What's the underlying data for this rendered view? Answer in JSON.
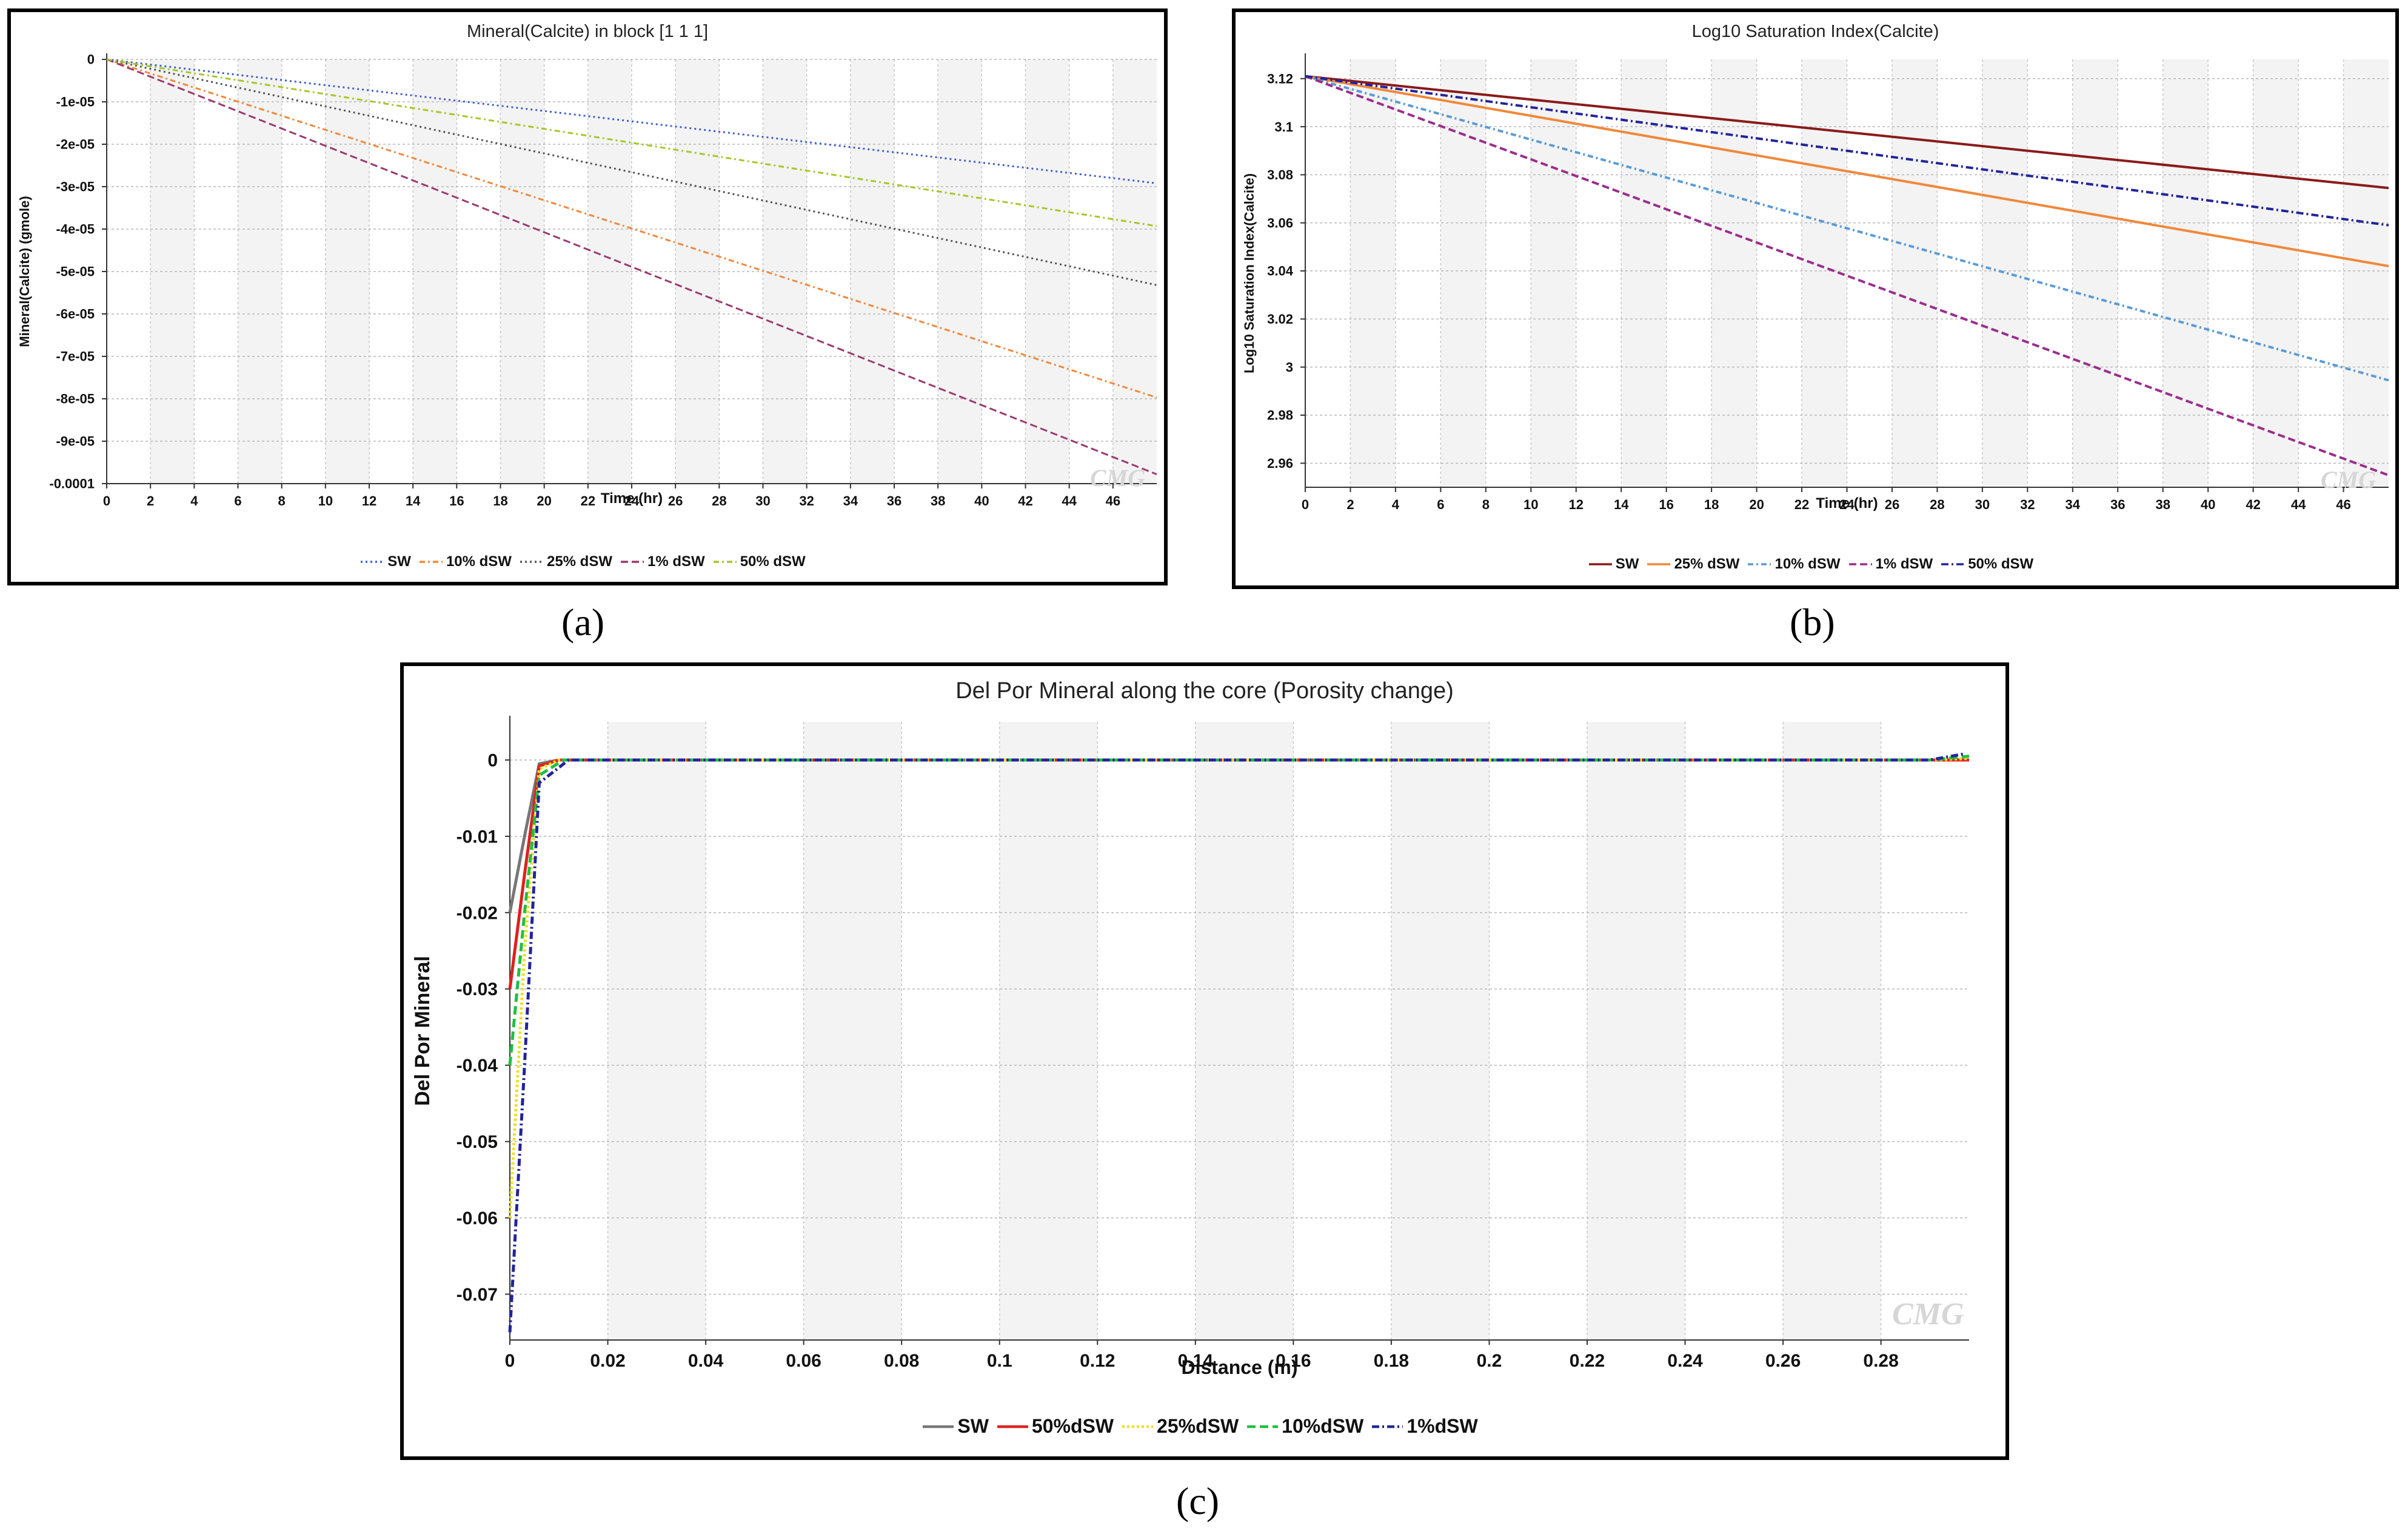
{
  "panels": [
    {
      "label": "(a)"
    },
    {
      "label": "(b)"
    },
    {
      "label": "(c)"
    }
  ],
  "watermark": "CMG",
  "chart_data": [
    {
      "type": "line",
      "title": "Mineral(Calcite) in block [1 1 1]",
      "xlabel": "Time (hr)",
      "ylabel": "Mineral(Calcite) (gmole)",
      "xlim": [
        0,
        48
      ],
      "ylim": [
        -0.0001,
        0
      ],
      "xticks": [
        0,
        2,
        4,
        6,
        8,
        10,
        12,
        14,
        16,
        18,
        20,
        22,
        24,
        26,
        28,
        30,
        32,
        34,
        36,
        38,
        40,
        42,
        44,
        46
      ],
      "xtick_labels": [
        "0",
        "2",
        "4",
        "6",
        "8",
        "10",
        "12",
        "14",
        "16",
        "18",
        "20",
        "22",
        "24",
        "26",
        "28",
        "30",
        "32",
        "34",
        "36",
        "38",
        "40",
        "42",
        "44",
        "46"
      ],
      "yticks": [
        0,
        -1e-05,
        -2e-05,
        -3e-05,
        -4e-05,
        -5e-05,
        -6e-05,
        -7e-05,
        -8e-05,
        -9e-05,
        -0.0001
      ],
      "ytick_labels": [
        "0",
        "-1e-05",
        "-2e-05",
        "-3e-05",
        "-4e-05",
        "-5e-05",
        "-6e-05",
        "-7e-05",
        "-8e-05",
        "-9e-05",
        "-0.0001"
      ],
      "series": [
        {
          "name": "SW",
          "color": "#3f5fcf",
          "dash": "3,5",
          "x": [
            0,
            48
          ],
          "y": [
            0,
            -2.92e-05
          ]
        },
        {
          "name": "10% dSW",
          "color": "#f0883a",
          "dash": "9,5,3,5",
          "x": [
            0,
            48
          ],
          "y": [
            0,
            -7.97e-05
          ]
        },
        {
          "name": "25% dSW",
          "color": "#555555",
          "dash": "3,5",
          "x": [
            0,
            48
          ],
          "y": [
            0,
            -5.32e-05
          ]
        },
        {
          "name": "1% dSW",
          "color": "#9b3a6e",
          "dash": "12,6",
          "x": [
            0,
            48
          ],
          "y": [
            0,
            -9.78e-05
          ]
        },
        {
          "name": "50% dSW",
          "color": "#a6c72a",
          "dash": "9,5,3,5",
          "x": [
            0,
            48
          ],
          "y": [
            0,
            -3.93e-05
          ]
        }
      ]
    },
    {
      "type": "line",
      "title": "Log10 Saturation Index(Calcite)",
      "xlabel": "Time (hr)",
      "ylabel": "Log10 Saturation Index(Calcite)",
      "xlim": [
        0,
        48
      ],
      "ylim": [
        2.95,
        3.128
      ],
      "xticks": [
        0,
        2,
        4,
        6,
        8,
        10,
        12,
        14,
        16,
        18,
        20,
        22,
        24,
        26,
        28,
        30,
        32,
        34,
        36,
        38,
        40,
        42,
        44,
        46
      ],
      "xtick_labels": [
        "0",
        "2",
        "4",
        "6",
        "8",
        "10",
        "12",
        "14",
        "16",
        "18",
        "20",
        "22",
        "24",
        "26",
        "28",
        "30",
        "32",
        "34",
        "36",
        "38",
        "40",
        "42",
        "44",
        "46"
      ],
      "yticks": [
        3.12,
        3.1,
        3.08,
        3.06,
        3.04,
        3.02,
        3.0,
        2.98,
        2.96
      ],
      "ytick_labels": [
        "3.12",
        "3.1",
        "3.08",
        "3.06",
        "3.04",
        "3.02",
        "3",
        "2.98",
        "2.96"
      ],
      "series": [
        {
          "name": "SW",
          "color": "#8b1a1a",
          "dash": "",
          "x": [
            0,
            48
          ],
          "y": [
            3.121,
            3.0745
          ]
        },
        {
          "name": "25% dSW",
          "color": "#f0883a",
          "dash": "",
          "x": [
            0,
            48
          ],
          "y": [
            3.121,
            3.042
          ]
        },
        {
          "name": "10% dSW",
          "color": "#5a9bd5",
          "dash": "9,5,3,5",
          "x": [
            0,
            48
          ],
          "y": [
            3.121,
            2.9945
          ]
        },
        {
          "name": "1% dSW",
          "color": "#9b2d8c",
          "dash": "12,6",
          "x": [
            0,
            48
          ],
          "y": [
            3.121,
            2.955
          ]
        },
        {
          "name": "50% dSW",
          "color": "#22249a",
          "dash": "12,5,3,5",
          "x": [
            0,
            48
          ],
          "y": [
            3.121,
            3.059
          ]
        }
      ]
    },
    {
      "type": "line",
      "title": "Del Por Mineral along the core (Porosity change)",
      "xlabel": "Distance (m)",
      "ylabel": "Del Por Mineral",
      "xlim": [
        0,
        0.298
      ],
      "ylim": [
        -0.076,
        0.005
      ],
      "xticks": [
        0,
        0.02,
        0.04,
        0.06,
        0.08,
        0.1,
        0.12,
        0.14,
        0.16,
        0.18,
        0.2,
        0.22,
        0.24,
        0.26,
        0.28
      ],
      "xtick_labels": [
        "0",
        "0.02",
        "0.04",
        "0.06",
        "0.08",
        "0.1",
        "0.12",
        "0.14",
        "0.16",
        "0.18",
        "0.2",
        "0.22",
        "0.24",
        "0.26",
        "0.28"
      ],
      "yticks": [
        0,
        -0.01,
        -0.02,
        -0.03,
        -0.04,
        -0.05,
        -0.06,
        -0.07
      ],
      "ytick_labels": [
        "0",
        "-0.01",
        "-0.02",
        "-0.03",
        "-0.04",
        "-0.05",
        "-0.06",
        "-0.07"
      ],
      "series": [
        {
          "name": "SW",
          "color": "#777777",
          "dash": "",
          "x": [
            0,
            0.003,
            0.006,
            0.01,
            0.29,
            0.298
          ],
          "y": [
            -0.02,
            -0.01,
            -0.0005,
            0,
            0,
            0
          ]
        },
        {
          "name": "50%dSW",
          "color": "#e02020",
          "dash": "",
          "x": [
            0,
            0.003,
            0.006,
            0.01,
            0.29,
            0.298
          ],
          "y": [
            -0.03,
            -0.015,
            -0.0008,
            0,
            0,
            0
          ]
        },
        {
          "name": "25%dSW",
          "color": "#f0e020",
          "dash": "4,4",
          "x": [
            0,
            0.003,
            0.006,
            0.01,
            0.29,
            0.298
          ],
          "y": [
            -0.06,
            -0.025,
            -0.0012,
            0,
            0,
            0.0002
          ]
        },
        {
          "name": "10%dSW",
          "color": "#20c040",
          "dash": "14,7",
          "x": [
            0,
            0.003,
            0.006,
            0.011,
            0.29,
            0.298
          ],
          "y": [
            -0.04,
            -0.02,
            -0.002,
            0,
            0,
            0.0005
          ]
        },
        {
          "name": "1%dSW",
          "color": "#22249a",
          "dash": "12,5,3,5",
          "x": [
            0,
            0.003,
            0.006,
            0.012,
            0.29,
            0.297
          ],
          "y": [
            -0.075,
            -0.04,
            -0.003,
            0,
            0,
            0.0008
          ]
        }
      ]
    }
  ]
}
